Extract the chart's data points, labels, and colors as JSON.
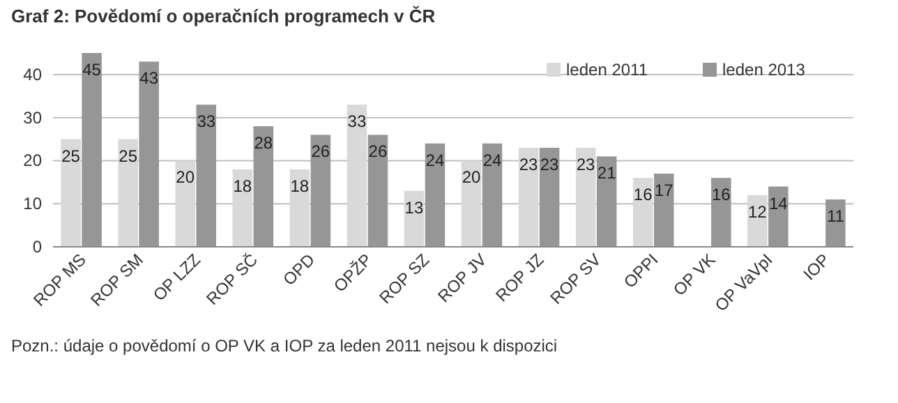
{
  "chart_data": {
    "type": "bar",
    "title": "Graf 2: Povědomí o operačních programech v ČR",
    "categories": [
      "ROP MS",
      "ROP SM",
      "OP LZZ",
      "ROP SČ",
      "OPD",
      "OPŽP",
      "ROP SZ",
      "ROP JV",
      "ROP JZ",
      "ROP SV",
      "OPPI",
      "OP VK",
      "OP VaVpI",
      "IOP"
    ],
    "series": [
      {
        "name": "leden 2011",
        "color": "#d9d9d9",
        "values": [
          25,
          25,
          20,
          18,
          18,
          33,
          13,
          20,
          23,
          23,
          16,
          null,
          12,
          null
        ]
      },
      {
        "name": "leden 2013",
        "color": "#969696",
        "values": [
          45,
          43,
          33,
          28,
          26,
          26,
          24,
          24,
          23,
          21,
          17,
          16,
          14,
          11
        ]
      }
    ],
    "ylim": [
      0,
      45
    ],
    "yticks": [
      0,
      10,
      20,
      30,
      40
    ],
    "grid": "y",
    "legend": "top right",
    "data_labels": true,
    "annotations": [
      "Pozn.: údaje o povědomí o OP VK a IOP za leden 2011 nejsou k dispozici"
    ]
  }
}
